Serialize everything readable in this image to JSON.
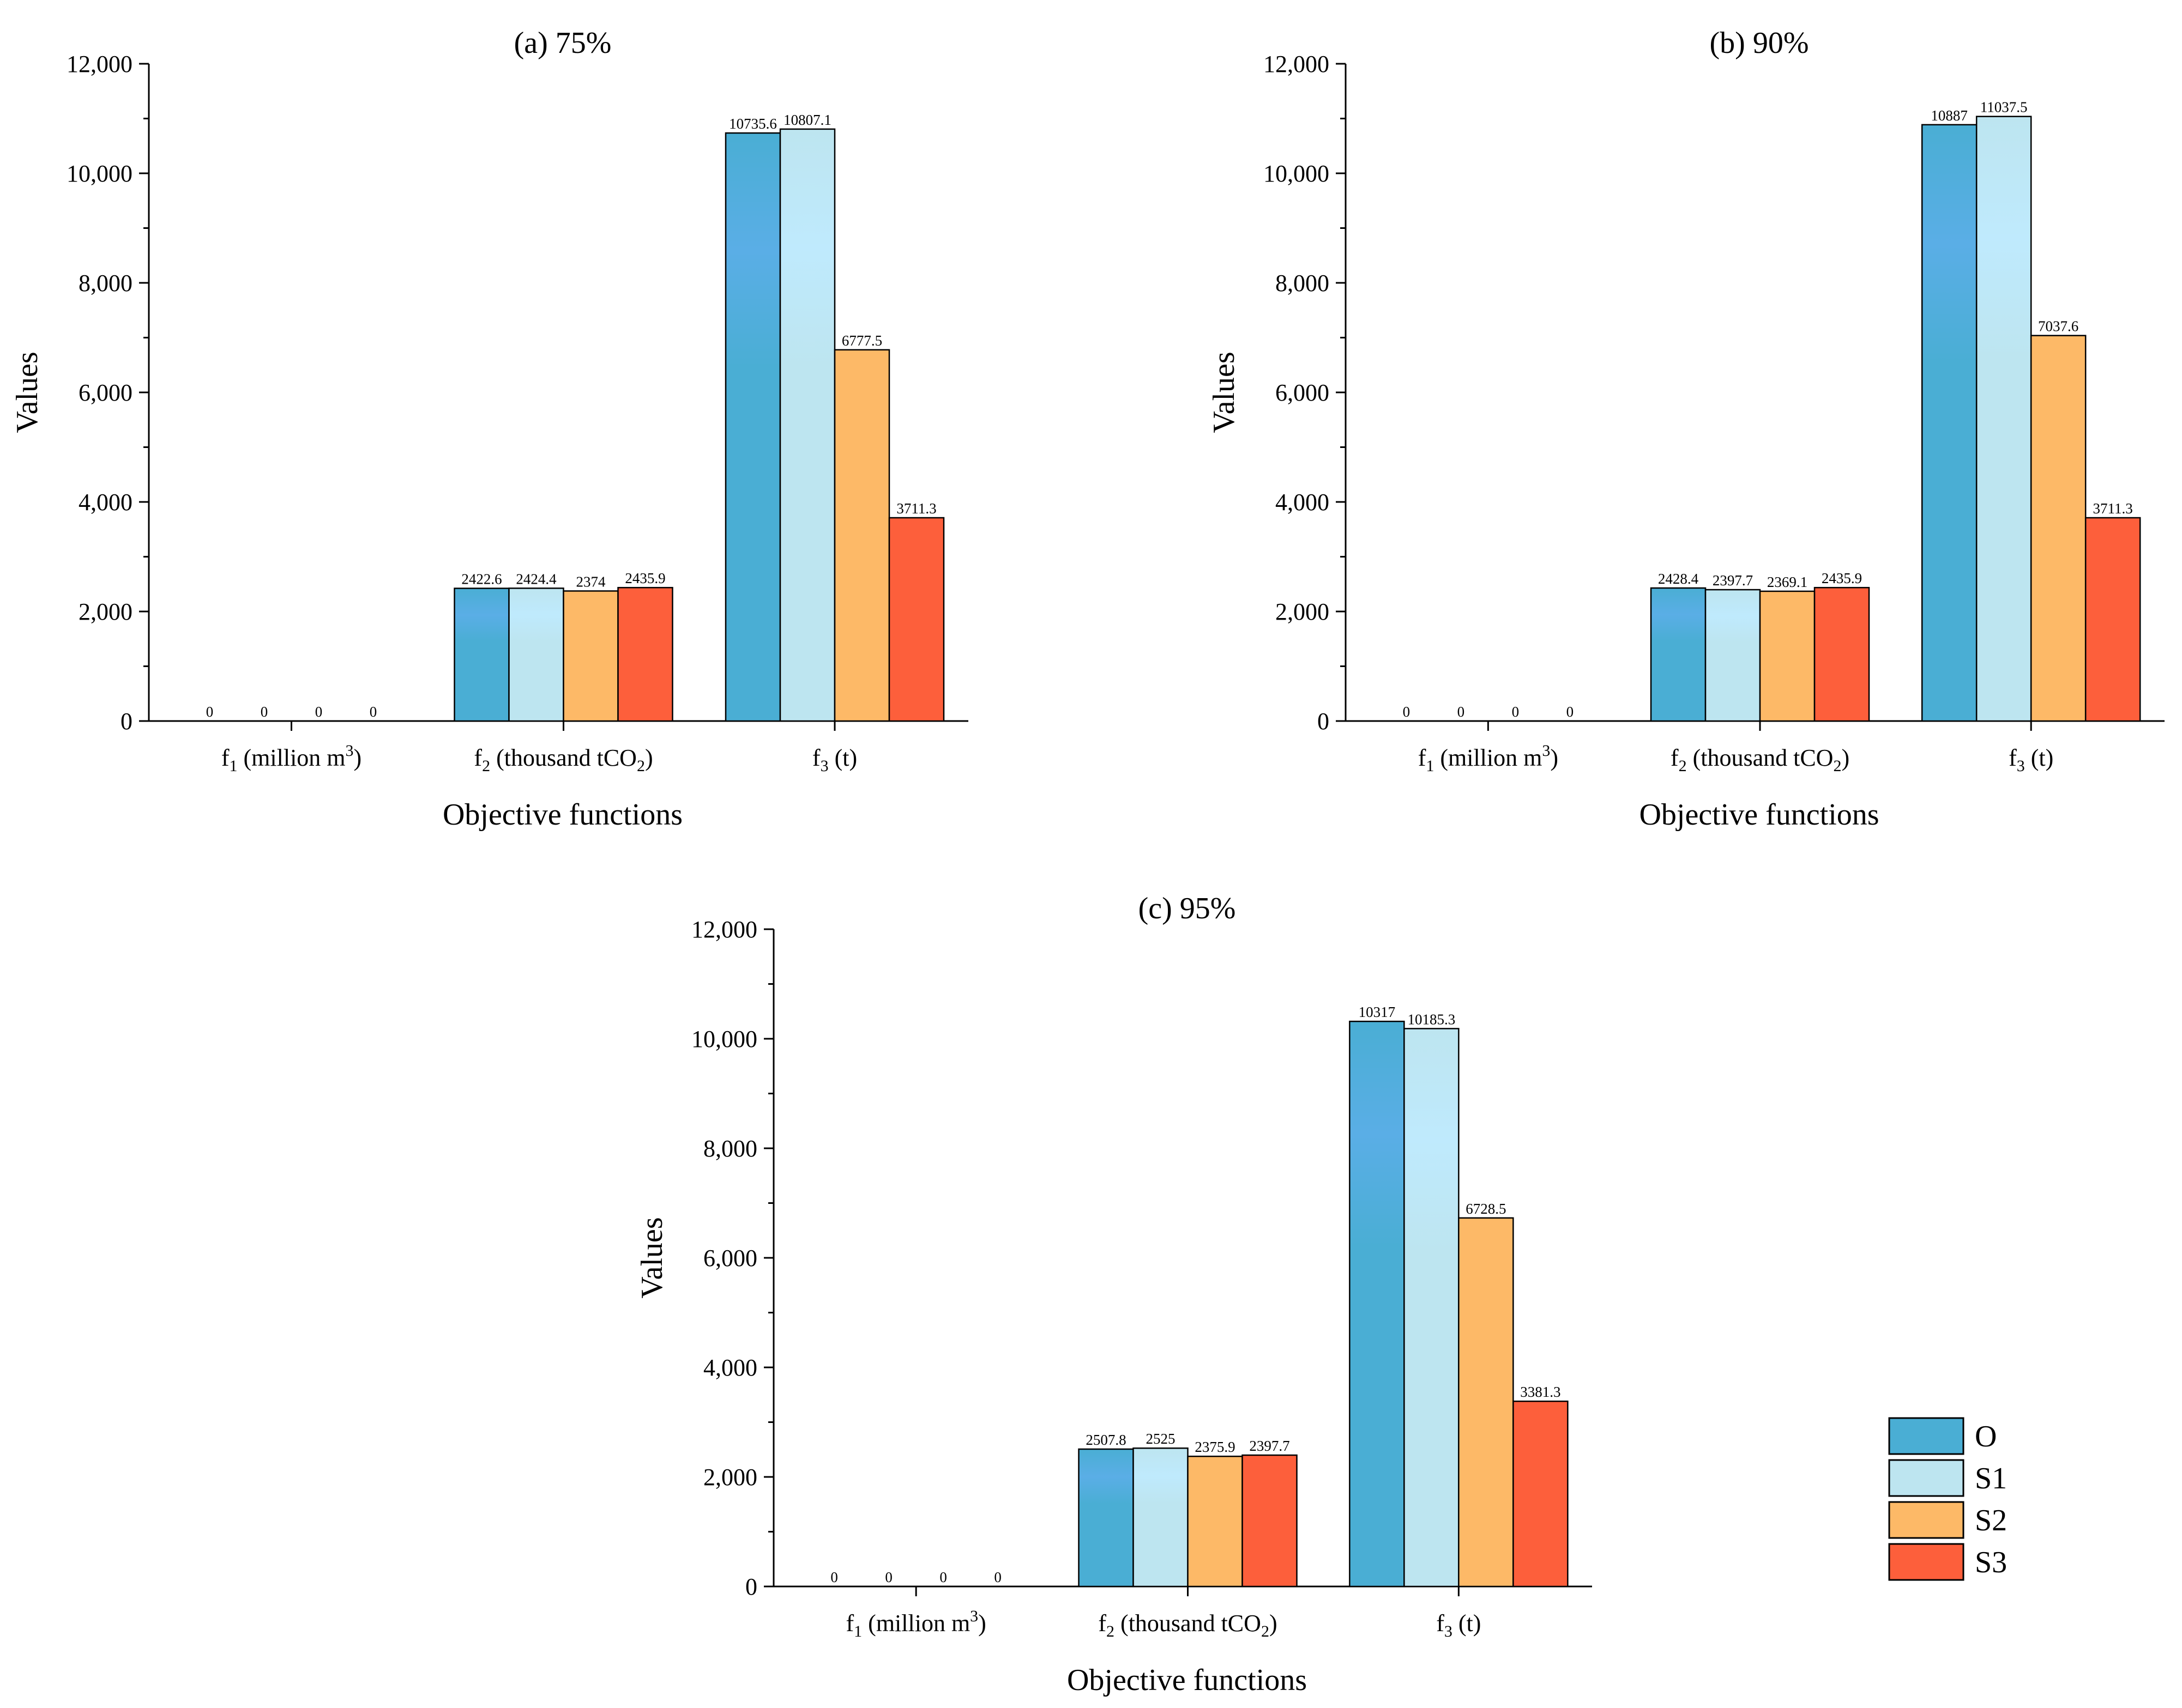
{
  "figure": {
    "legend": [
      {
        "name": "O",
        "color": "#4aaed4"
      },
      {
        "name": "S1",
        "color": "#bde5f0"
      },
      {
        "name": "S2",
        "color": "#fdb967"
      },
      {
        "name": "S3",
        "color": "#fd5f3b"
      }
    ]
  },
  "chart_data": [
    {
      "type": "bar",
      "title": "(a) 75%",
      "xlabel": "Objective functions",
      "ylabel": "Values",
      "ylim": [
        0,
        12000
      ],
      "yticks": [
        "0",
        "2,000",
        "4,000",
        "6,000",
        "8,000",
        "10,000",
        "12,000"
      ],
      "categories": [
        "f1 (million m3)",
        "f2 (thousand tCO2)",
        "f3 (t)"
      ],
      "series": [
        {
          "name": "O",
          "values": [
            0,
            2422.6,
            10735.6
          ],
          "labels": [
            "0",
            "2422.6",
            "10735.6"
          ]
        },
        {
          "name": "S1",
          "values": [
            0,
            2424.4,
            10807.1
          ],
          "labels": [
            "0",
            "2424.4",
            "10807.1"
          ]
        },
        {
          "name": "S2",
          "values": [
            0,
            2374,
            6777.5
          ],
          "labels": [
            "0",
            "2374",
            "6777.5"
          ]
        },
        {
          "name": "S3",
          "values": [
            0,
            2435.9,
            3711.3
          ],
          "labels": [
            "0",
            "2435.9",
            "3711.3"
          ]
        }
      ]
    },
    {
      "type": "bar",
      "title": "(b) 90%",
      "xlabel": "Objective functions",
      "ylabel": "Values",
      "ylim": [
        0,
        12000
      ],
      "yticks": [
        "0",
        "2,000",
        "4,000",
        "6,000",
        "8,000",
        "10,000",
        "12,000"
      ],
      "categories": [
        "f1 (million m3)",
        "f2 (thousand tCO2)",
        "f3 (t)"
      ],
      "series": [
        {
          "name": "O",
          "values": [
            0,
            2428.4,
            10887
          ],
          "labels": [
            "0",
            "2428.4",
            "10887"
          ]
        },
        {
          "name": "S1",
          "values": [
            0,
            2397.7,
            11037.5
          ],
          "labels": [
            "0",
            "2397.7",
            "11037.5"
          ]
        },
        {
          "name": "S2",
          "values": [
            0,
            2369.1,
            7037.6
          ],
          "labels": [
            "0",
            "2369.1",
            "7037.6"
          ]
        },
        {
          "name": "S3",
          "values": [
            0,
            2435.9,
            3711.3
          ],
          "labels": [
            "0",
            "2435.9",
            "3711.3"
          ]
        }
      ]
    },
    {
      "type": "bar",
      "title": "(c) 95%",
      "xlabel": "Objective functions",
      "ylabel": "Values",
      "ylim": [
        0,
        12000
      ],
      "yticks": [
        "0",
        "2,000",
        "4,000",
        "6,000",
        "8,000",
        "10,000",
        "12,000"
      ],
      "categories": [
        "f1 (million m3)",
        "f2 (thousand tCO2)",
        "f3 (t)"
      ],
      "series": [
        {
          "name": "O",
          "values": [
            0,
            2507.8,
            10317
          ],
          "labels": [
            "0",
            "2507.8",
            "10317"
          ]
        },
        {
          "name": "S1",
          "values": [
            0,
            2525,
            10185.3
          ],
          "labels": [
            "0",
            "2525",
            "10185.3"
          ]
        },
        {
          "name": "S2",
          "values": [
            0,
            2375.9,
            6728.5
          ],
          "labels": [
            "0",
            "2375.9",
            "6728.5"
          ]
        },
        {
          "name": "S3",
          "values": [
            0,
            2397.7,
            3381.3
          ],
          "labels": [
            "0",
            "2397.7",
            "3381.3"
          ]
        }
      ]
    }
  ]
}
